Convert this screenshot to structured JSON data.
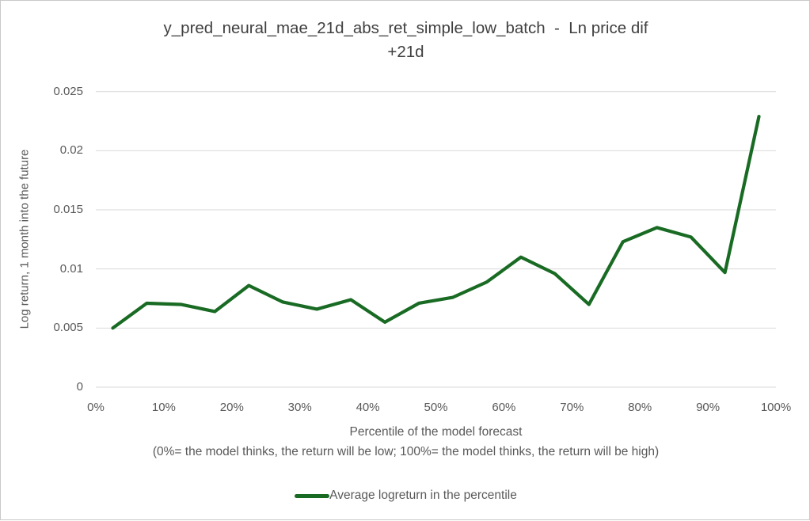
{
  "figure": {
    "title_line1": "y_pred_neural_mae_21d_abs_ret_simple_low_batch  -  Ln price dif",
    "title_line2": "+21d"
  },
  "chart_data": {
    "type": "line",
    "title": "y_pred_neural_mae_21d_abs_ret_simple_low_batch - Ln price dif +21d",
    "xlabel": "Percentile of the model forecast",
    "xlabel_note": "(0%= the model thinks, the return will be low; 100%= the model thinks, the return will be high)",
    "ylabel": "Log return, 1 month into the future",
    "xlim": [
      0,
      100
    ],
    "ylim": [
      0,
      0.025
    ],
    "x_tick_labels": [
      "0%",
      "10%",
      "20%",
      "30%",
      "40%",
      "50%",
      "60%",
      "70%",
      "80%",
      "90%",
      "100%"
    ],
    "y_ticks": [
      0,
      0.005,
      0.01,
      0.015,
      0.02,
      0.025
    ],
    "y_tick_labels": [
      "0",
      "0.005",
      "0.01",
      "0.015",
      "0.02",
      "0.025"
    ],
    "grid": "horizontal",
    "legend": {
      "position": "bottom",
      "entries": [
        {
          "label": "Average logreturn in the percentile",
          "color": "#196B24"
        }
      ]
    },
    "series": [
      {
        "name": "Average logreturn in the percentile",
        "color": "#196B24",
        "x": [
          2.5,
          7.5,
          12.5,
          17.5,
          22.5,
          27.5,
          32.5,
          37.5,
          42.5,
          47.5,
          52.5,
          57.5,
          62.5,
          67.5,
          72.5,
          77.5,
          82.5,
          87.5,
          92.5,
          97.5
        ],
        "values": [
          0.005,
          0.0071,
          0.007,
          0.0064,
          0.0086,
          0.0072,
          0.0066,
          0.0074,
          0.0055,
          0.0071,
          0.0076,
          0.0089,
          0.011,
          0.0096,
          0.007,
          0.0123,
          0.0135,
          0.0127,
          0.0097,
          0.0229
        ]
      }
    ]
  },
  "colors": {
    "line": "#196B24",
    "gridline": "#D9D9D9",
    "text": "#595959",
    "title": "#404040",
    "background": "#FFFFFF",
    "figure_border": "#C9C9C9"
  }
}
